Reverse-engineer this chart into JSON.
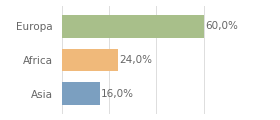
{
  "categories": [
    "Europa",
    "Africa",
    "Asia"
  ],
  "values": [
    60.0,
    24.0,
    16.0
  ],
  "bar_colors": [
    "#a8bf8a",
    "#f0b97a",
    "#7b9fc0"
  ],
  "labels": [
    "60,0%",
    "24,0%",
    "16,0%"
  ],
  "xlim": [
    0,
    78
  ],
  "background_color": "#ffffff",
  "bar_height": 0.68,
  "label_fontsize": 7.5,
  "ytick_fontsize": 7.5,
  "grid_color": "#dddddd",
  "text_color": "#666666"
}
